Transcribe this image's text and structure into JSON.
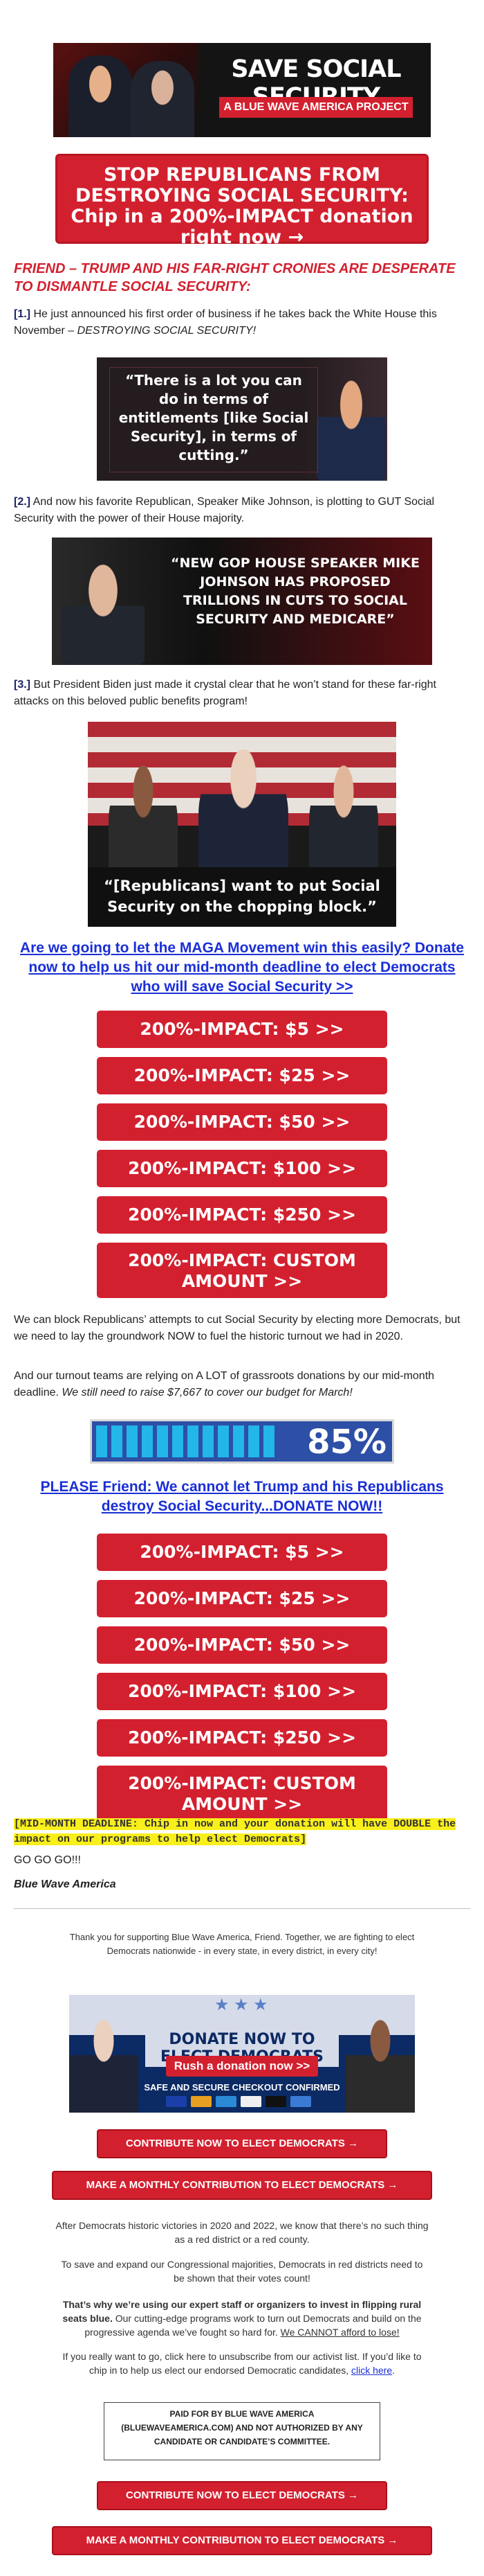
{
  "banner": {
    "title": "SAVE SOCIAL SECURITY",
    "subtitle": "A BLUE WAVE AMERICA PROJECT"
  },
  "top_button": {
    "line1": "STOP REPUBLICANS FROM",
    "line2": "DESTROYING SOCIAL SECURITY:",
    "line3": "Chip in a 200%-IMPACT donation",
    "line4": "right now →"
  },
  "headline": "FRIEND – TRUMP AND HIS FAR-RIGHT CRONIES ARE DESPERATE TO DISMANTLE SOCIAL SECURITY:",
  "points": [
    {
      "num": "[1.]",
      "text": " He just announced his first order of business if he takes back the White House this November – ",
      "em": "DESTROYING SOCIAL SECURITY!"
    },
    {
      "num": "[2.]",
      "text": " And now his favorite Republican, Speaker Mike Johnson, is plotting to GUT Social Security with the power of their House majority.",
      "em": ""
    },
    {
      "num": "[3.]",
      "text": " But President Biden just made it crystal clear that he won’t stand for these far-right attacks on this beloved public benefits program!",
      "em": ""
    }
  ],
  "photo1_quote": "“There is a lot you can do in terms of entitlements [like Social Security], in terms of cutting.”",
  "photo2_quote": "“NEW GOP HOUSE SPEAKER MIKE JOHNSON HAS PROPOSED TRILLIONS IN CUTS TO SOCIAL SECURITY AND MEDICARE”",
  "photo3_quote": "“[Republicans] want to put Social Security on the chopping block.”",
  "link1": "Are we going to let the MAGA Movement win this easily? Donate now to help us hit our mid-month deadline to elect Democrats who will save Social Security >>",
  "donate_buttons_1": [
    "200%-IMPACT: $5 >>",
    "200%-IMPACT: $25 >>",
    "200%-IMPACT: $50 >>",
    "200%-IMPACT: $100 >>",
    "200%-IMPACT: $250 >>"
  ],
  "custom_line1": "200%-IMPACT: CUSTOM",
  "custom_line2": "AMOUNT >>",
  "body1": "We can block Republicans’ attempts to cut Social Security by electing more Democrats, but we need to lay the groundwork NOW to fuel the historic turnout we had in 2020.",
  "body2": "And our turnout teams are relying on A LOT of grassroots donations by our mid-month deadline. ",
  "body2_em": "We still need to raise $7,667 to cover our budget for March!",
  "progress": {
    "percent_label": "85%",
    "value": 0.85,
    "bar_color": "#22b7e7",
    "bg_color": "#2d4fa6"
  },
  "link2": "PLEASE Friend: We cannot let Trump and his Republicans destroy Social Security...DONATE NOW!!",
  "donate_buttons_2": [
    "200%-IMPACT: $5 >>",
    "200%-IMPACT: $25 >>",
    "200%-IMPACT: $50 >>",
    "200%-IMPACT: $100 >>",
    "200%-IMPACT: $250 >>"
  ],
  "deadline_note": "[MID-MONTH DEADLINE: Chip in now and your donation will have DOUBLE the impact on our programs to help elect Democrats]",
  "go": "GO GO GO!!!",
  "signature": "Blue Wave America",
  "footer": {
    "thanks": "Thank you for supporting Blue Wave America, Friend. Together, we are fighting to elect Democrats nationwide - in every state, in every district, in every city!",
    "banner_title": "DONATE NOW TO ELECT DEMOCRATS",
    "banner_rush": "Rush a donation now >>",
    "banner_safe": "SAFE AND SECURE CHECKOUT CONFIRMED",
    "btn_contribute": "CONTRIBUTE NOW TO ELECT DEMOCRATS →",
    "btn_monthly": "MAKE A MONTHLY CONTRIBUTION TO ELECT DEMOCRATS →",
    "para1": "After Democrats historic victories in 2020 and 2022, we know that there’s no such thing as a red district or a red county.",
    "para2": "To save and expand our Congressional majorities, Democrats in red districts need to be shown that their votes count!",
    "para3_bold": "That’s why we’re using our expert staff or organizers to invest in flipping rural seats blue.",
    "para3_rest": " Our cutting-edge programs work to turn out Democrats and build on the progressive agenda we’ve fought so hard for. ",
    "para3_underline": "We CANNOT afford to lose!",
    "para4": "If you really want to go, click here to unsubscribe from our activist list. If you’d like to chip in to help us elect our endorsed Democratic candidates, ",
    "para4_link": "click here",
    "paid_line1": "PAID FOR BY BLUE WAVE AMERICA",
    "paid_line2": "(BLUEWAVEAMERICA.COM) AND NOT AUTHORIZED BY ANY",
    "paid_line3": "CANDIDATE OR CANDIDATE’S COMMITTEE."
  }
}
